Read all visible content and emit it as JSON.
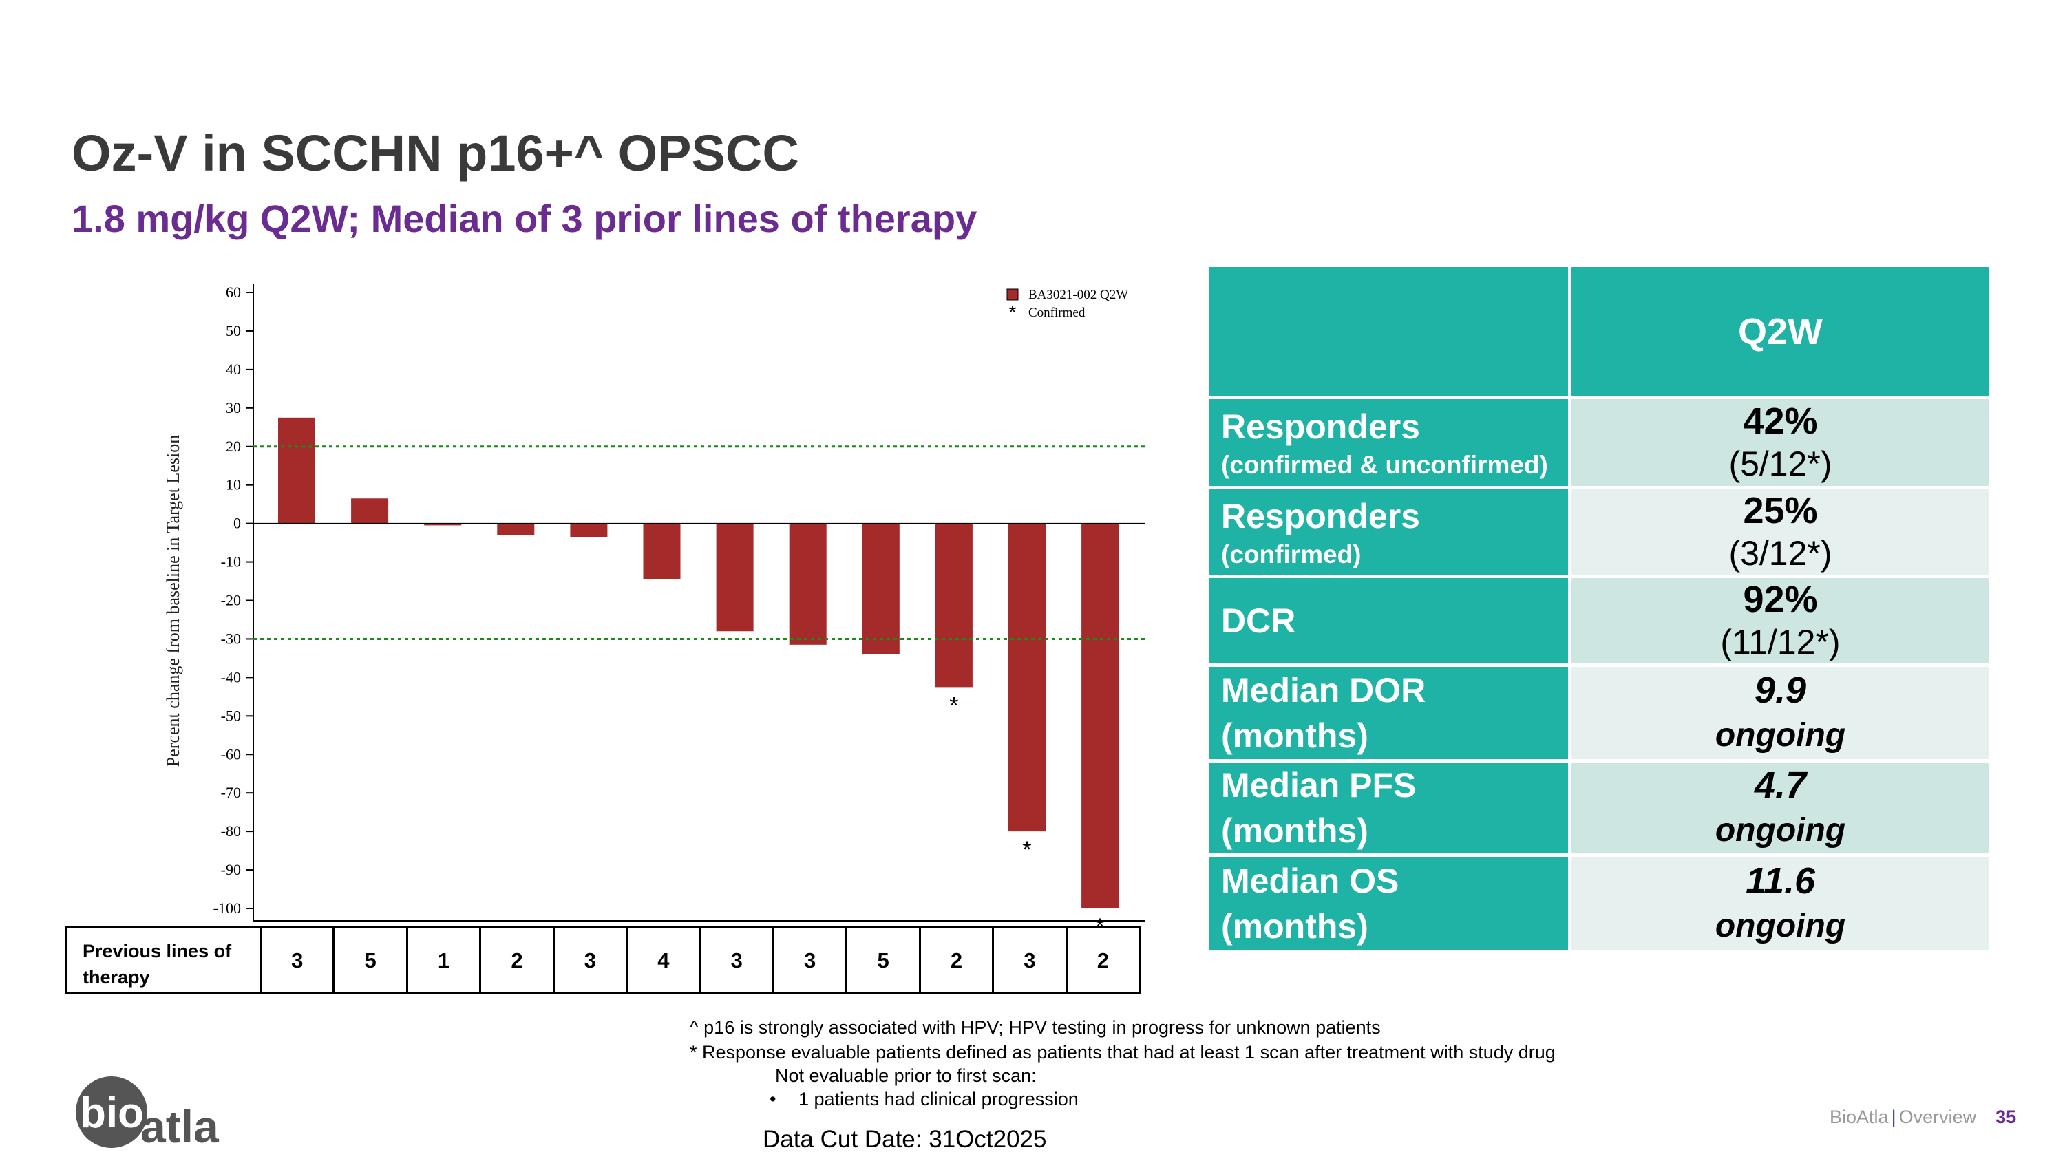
{
  "header": {
    "title": "Oz-V in SCCHN p16+^ OPSCC",
    "subtitle": "1.8 mg/kg Q2W; Median of 3 prior lines of therapy"
  },
  "chart_data": {
    "type": "bar",
    "title": "",
    "xlabel": "",
    "ylabel": "Percent change from baseline in Target Lesion",
    "ylim": [
      -100,
      60
    ],
    "yticks": [
      60,
      50,
      40,
      30,
      20,
      10,
      0,
      -10,
      -20,
      -30,
      -40,
      -50,
      -60,
      -70,
      -80,
      -90,
      -100
    ],
    "reference_lines": [
      20,
      -30
    ],
    "legend": {
      "placement": "top-right",
      "entries": [
        "BA3021-002 Q2W",
        "Confirmed"
      ]
    },
    "series": [
      {
        "name": "BA3021-002 Q2W",
        "values": [
          27.5,
          6.5,
          -0.5,
          -3,
          -3.5,
          -14.5,
          -28,
          -31.5,
          -34,
          -42.5,
          -80,
          -100
        ]
      }
    ],
    "confirmed": [
      false,
      false,
      false,
      false,
      false,
      false,
      false,
      false,
      false,
      true,
      true,
      true
    ],
    "bar_color": "#a52a2a",
    "ref_color": "#1a8a1a"
  },
  "lines_table": {
    "label": "Previous lines of therapy",
    "values": [
      "3",
      "5",
      "1",
      "2",
      "3",
      "4",
      "3",
      "3",
      "5",
      "2",
      "3",
      "2"
    ]
  },
  "stats": {
    "header": "Q2W",
    "rows": [
      {
        "label": "Responders",
        "sub": "(confirmed & unconfirmed)",
        "pct": "42%",
        "frac": "(5/12*)"
      },
      {
        "label": "Responders",
        "sub": "(confirmed)",
        "pct": "25%",
        "frac": "(3/12*)"
      },
      {
        "label": "DCR",
        "pct": "92%",
        "frac": "(11/12*)"
      },
      {
        "label": "Median DOR",
        "sub": "(months)",
        "num": "9.9",
        "status": "ongoing"
      },
      {
        "label": "Median PFS",
        "sub": "(months)",
        "num": "4.7",
        "status": "ongoing"
      },
      {
        "label": "Median OS",
        "sub": "(months)",
        "num": "11.6",
        "status": "ongoing"
      }
    ]
  },
  "notes": {
    "n1": "^ p16 is strongly associated with HPV; HPV testing in progress for unknown patients",
    "n2": "* Response evaluable patients defined as patients that had at least 1 scan after treatment with study drug",
    "n3": "Not evaluable prior to first scan:",
    "n4": "1 patients had clinical progression",
    "bullet": "•",
    "datacut": "Data Cut Date: 31Oct2025"
  },
  "footer": {
    "company": "BioAtla",
    "sep": "|",
    "section": "Overview",
    "page": "35",
    "logo": "bioatla"
  }
}
